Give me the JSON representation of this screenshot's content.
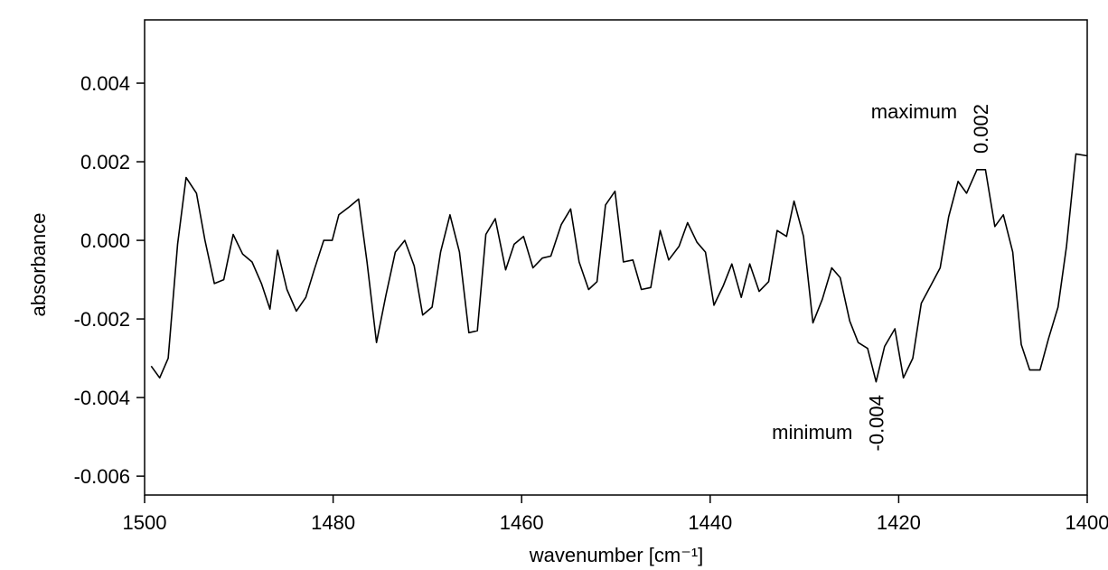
{
  "chart_data": {
    "type": "line",
    "x_label": "wavenumber [cm⁻¹]",
    "y_label": "absorbance",
    "xlim": [
      1500,
      1400
    ],
    "ylim": [
      -0.00648,
      0.00561
    ],
    "xticks": [
      1500,
      1480,
      1460,
      1440,
      1420,
      1400
    ],
    "yticks": [
      -0.006,
      -0.004,
      -0.002,
      {
        "value": 0,
        "label": "0.000"
      },
      {
        "value": 0.002,
        "label": "0.002"
      },
      {
        "value": 0.004,
        "label": "0.004"
      }
    ],
    "color": "#000000",
    "x": [
      1499.3,
      1498.4,
      1497.5,
      1496.5,
      1495.6,
      1494.5,
      1493.6,
      1492.6,
      1491.6,
      1490.6,
      1489.6,
      1488.6,
      1487.6,
      1486.7,
      1485.9,
      1484.9,
      1483.9,
      1482.9,
      1482.0,
      1481.0,
      1480.1,
      1479.4,
      1478.3,
      1477.3,
      1476.4,
      1475.4,
      1474.4,
      1473.4,
      1472.4,
      1471.4,
      1470.5,
      1469.5,
      1468.6,
      1467.6,
      1466.6,
      1465.6,
      1464.7,
      1463.8,
      1462.8,
      1461.7,
      1460.8,
      1459.8,
      1458.8,
      1457.8,
      1456.9,
      1455.8,
      1454.8,
      1453.9,
      1452.9,
      1452.0,
      1451.1,
      1450.1,
      1449.2,
      1448.2,
      1447.3,
      1446.3,
      1445.3,
      1444.4,
      1443.3,
      1442.4,
      1441.4,
      1440.5,
      1439.6,
      1438.6,
      1437.7,
      1436.7,
      1435.8,
      1434.8,
      1433.8,
      1432.9,
      1431.9,
      1431.1,
      1430.1,
      1429.1,
      1428.1,
      1427.1,
      1426.2,
      1425.2,
      1424.3,
      1423.3,
      1422.4,
      1421.5,
      1420.4,
      1419.5,
      1418.5,
      1417.6,
      1416.6,
      1415.6,
      1414.7,
      1413.7,
      1412.8,
      1411.7,
      1410.8,
      1409.8,
      1408.9,
      1407.9,
      1407.0,
      1406.1,
      1405.0,
      1404.1,
      1403.1,
      1402.2,
      1401.2,
      1400.0
    ],
    "values": [
      -0.0032,
      -0.0035,
      -0.003,
      -0.0001,
      0.0016,
      0.0012,
      0,
      -0.0011,
      -0.001,
      0.00015,
      -0.00035,
      -0.00055,
      -0.0011,
      -0.00175,
      -0.00025,
      -0.00125,
      -0.0018,
      -0.00145,
      -0.00075,
      0,
      0,
      0.00065,
      0.00085,
      0.00105,
      -0.00055,
      -0.0026,
      -0.0014,
      -0.0003,
      0,
      -0.00065,
      -0.0019,
      -0.0017,
      -0.0003,
      0.00065,
      -0.0003,
      -0.00235,
      -0.0023,
      0.00015,
      0.00055,
      -0.00075,
      -0.0001,
      0.0001,
      -0.0007,
      -0.00045,
      -0.0004,
      0.0004,
      0.0008,
      -0.00055,
      -0.00125,
      -0.00105,
      0.0009,
      0.00125,
      -0.00055,
      -0.0005,
      -0.00125,
      -0.0012,
      0.00025,
      -0.0005,
      -0.00015,
      0.00045,
      -5e-05,
      -0.0003,
      -0.00165,
      -0.00115,
      -0.0006,
      -0.00145,
      -0.0006,
      -0.0013,
      -0.00105,
      0.00025,
      0.0001,
      0.001,
      0.0001,
      -0.0021,
      -0.0015,
      -0.0007,
      -0.00095,
      -0.00205,
      -0.0026,
      -0.00275,
      -0.0036,
      -0.0027,
      -0.00225,
      -0.0035,
      -0.003,
      -0.0016,
      -0.00115,
      -0.0007,
      0.0006,
      0.0015,
      0.0012,
      0.0018,
      0.0018,
      0.00035,
      0.00065,
      -0.0003,
      -0.00265,
      -0.0033,
      -0.0033,
      -0.0025,
      -0.0017,
      -0.00015,
      0.0022,
      0.00215
    ],
    "annotations": [
      {
        "text": "maximum",
        "value": 0.002,
        "value_label": "0.002",
        "x": 1411.3
      },
      {
        "text": "minimum",
        "value": -0.004,
        "value_label": "-0.004",
        "x": 1422.4
      }
    ]
  }
}
